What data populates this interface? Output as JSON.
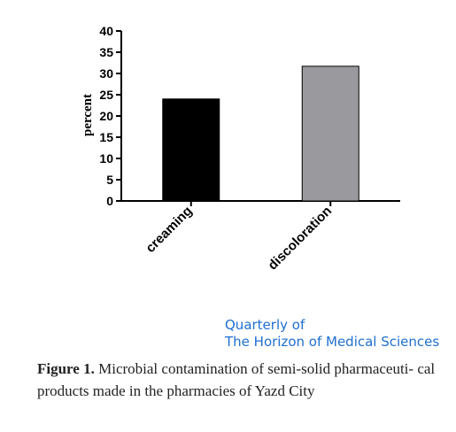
{
  "chart_data": {
    "type": "bar",
    "categories": [
      "creaming",
      "discoloration"
    ],
    "values": [
      24,
      31.7
    ],
    "ylabel": "percent",
    "ylim": [
      0,
      40
    ],
    "yticks": [
      0,
      5,
      10,
      15,
      20,
      25,
      30,
      35,
      40
    ],
    "colors": [
      "#000000",
      "#9a9a9e"
    ],
    "grid": false
  },
  "journal": {
    "line1": "Quarterly of",
    "line2": "The Horizon of Medical Sciences"
  },
  "caption": {
    "label": "Figure 1.",
    "text": " Microbial contamination of semi-solid pharmaceuti- cal products made in the pharmacies of Yazd City"
  }
}
